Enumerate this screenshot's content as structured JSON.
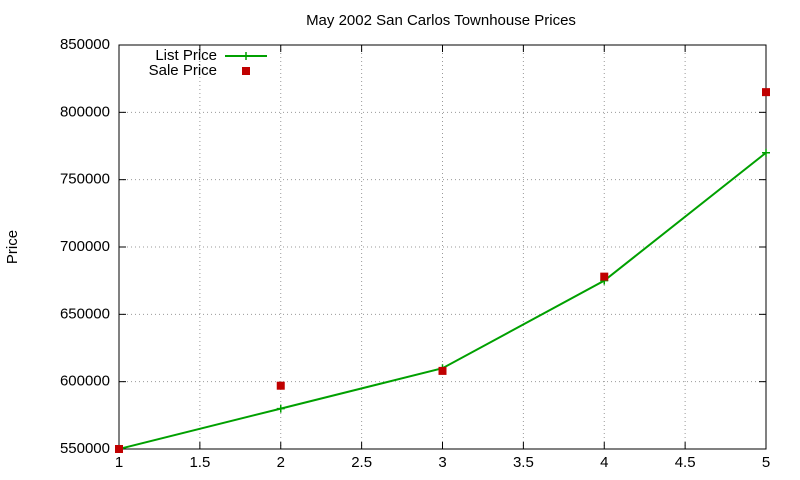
{
  "chart_data": {
    "type": "line",
    "title": "May 2002 San Carlos Townhouse Prices",
    "y_label": "Price",
    "x": [
      1,
      2,
      3,
      4,
      5
    ],
    "series": [
      {
        "name": "List Price",
        "color": "#00a000",
        "style": "linespoints",
        "values": [
          550000,
          580000,
          610000,
          675000,
          770000
        ]
      },
      {
        "name": "Sale Price",
        "color": "#c00000",
        "style": "points",
        "values": [
          550000,
          597000,
          608000,
          678000,
          815000
        ]
      }
    ],
    "xlim": [
      1,
      5
    ],
    "xticks": [
      1,
      1.5,
      2,
      2.5,
      3,
      3.5,
      4,
      4.5,
      5
    ],
    "ylim": [
      550000,
      850000
    ],
    "yticks": [
      550000,
      600000,
      650000,
      700000,
      750000,
      800000,
      850000
    ],
    "grid": true,
    "legend": "top-left"
  }
}
